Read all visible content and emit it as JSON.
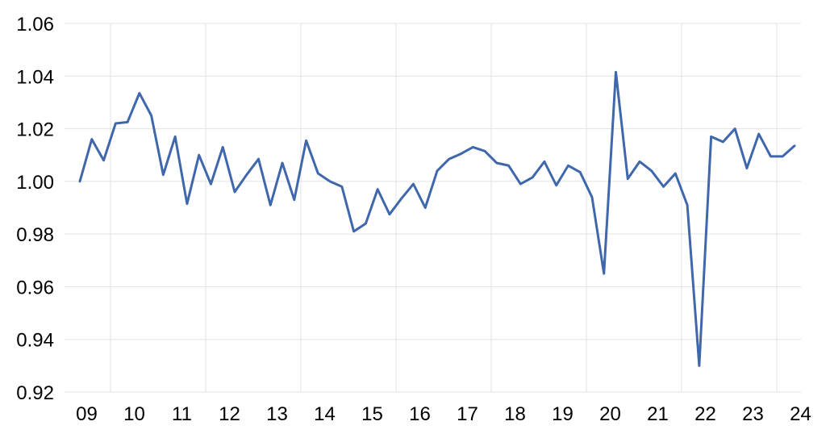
{
  "chart_data": {
    "type": "line",
    "title": "",
    "xlabel": "",
    "ylabel": "",
    "x_tick_labels": [
      "09",
      "10",
      "11",
      "12",
      "13",
      "14",
      "15",
      "16",
      "17",
      "18",
      "19",
      "20",
      "21",
      "22",
      "23",
      "24"
    ],
    "y_tick_labels": [
      "0.92",
      "0.94",
      "0.96",
      "0.98",
      "1.00",
      "1.02",
      "1.04",
      "1.06"
    ],
    "y_ticks": [
      0.92,
      0.94,
      0.96,
      0.98,
      1.0,
      1.02,
      1.04,
      1.06
    ],
    "ylim": [
      0.92,
      1.06
    ],
    "grid": true,
    "line_color": "#3F67AC",
    "grid_color": "#E3E3E3",
    "series": [
      {
        "values": [
          1.0,
          1.016,
          1.008,
          1.022,
          1.0225,
          1.0335,
          1.025,
          1.0025,
          1.017,
          0.9915,
          1.01,
          0.999,
          1.013,
          0.996,
          1.0025,
          1.0085,
          0.991,
          1.007,
          0.993,
          1.0155,
          1.003,
          1.0,
          0.998,
          0.981,
          0.984,
          0.997,
          0.9875,
          0.9935,
          0.999,
          0.99,
          1.004,
          1.0085,
          1.0105,
          1.013,
          1.0115,
          1.007,
          1.006,
          0.999,
          1.0015,
          1.0075,
          0.9985,
          1.006,
          1.0035,
          0.994,
          0.965,
          1.0415,
          1.001,
          1.0075,
          1.004,
          0.998,
          1.003,
          0.991,
          0.93,
          1.017,
          1.015,
          1.02,
          1.005,
          1.018,
          1.0095,
          1.0095,
          1.0135
        ]
      }
    ]
  }
}
